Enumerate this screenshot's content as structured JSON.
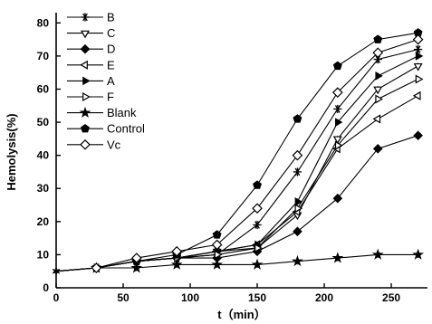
{
  "chart_data": {
    "type": "line",
    "title": "",
    "xlabel": "t（min）",
    "ylabel": "Hemolysis(%)",
    "xlim": [
      0,
      277
    ],
    "ylim": [
      0,
      82
    ],
    "xticks": [
      "0",
      "50",
      "100",
      "150",
      "200",
      "250"
    ],
    "yticks": [
      "0",
      "10",
      "20",
      "30",
      "40",
      "50",
      "60",
      "70",
      "80"
    ],
    "legend": "top-left",
    "grid": false,
    "series": [
      {
        "name": "B",
        "marker": "star6",
        "x": [
          0,
          30,
          60,
          90,
          120,
          150,
          180,
          210,
          240,
          270
        ],
        "y": [
          5,
          6,
          8,
          9,
          10,
          19,
          35,
          54,
          69,
          72
        ]
      },
      {
        "name": "C",
        "marker": "triangle-down-open",
        "x": [
          0,
          30,
          60,
          90,
          120,
          150,
          180,
          210,
          240,
          270
        ],
        "y": [
          5,
          6,
          8,
          9,
          11,
          12,
          22,
          45,
          60,
          67
        ]
      },
      {
        "name": "D",
        "marker": "diamond-filled",
        "x": [
          0,
          30,
          60,
          90,
          120,
          150,
          180,
          210,
          240,
          270
        ],
        "y": [
          5,
          6,
          8,
          9,
          9,
          11,
          17,
          27,
          42,
          46
        ]
      },
      {
        "name": "E",
        "marker": "triangle-left-open",
        "x": [
          0,
          30,
          60,
          90,
          120,
          150,
          180,
          210,
          240,
          270
        ],
        "y": [
          5,
          6,
          8,
          9,
          11,
          13,
          23,
          42,
          51,
          58
        ]
      },
      {
        "name": "A",
        "marker": "triangle-right-filled",
        "x": [
          0,
          30,
          60,
          90,
          120,
          150,
          180,
          210,
          240,
          270
        ],
        "y": [
          5,
          6,
          8,
          9,
          11,
          13,
          26,
          50,
          64,
          70
        ]
      },
      {
        "name": "F",
        "marker": "triangle-right-open",
        "x": [
          0,
          30,
          60,
          90,
          120,
          150,
          180,
          210,
          240,
          270
        ],
        "y": [
          5,
          6,
          8,
          9,
          10,
          12,
          24,
          43,
          57,
          63
        ]
      },
      {
        "name": "Blank",
        "marker": "star5",
        "x": [
          0,
          30,
          60,
          90,
          120,
          150,
          180,
          210,
          240,
          270
        ],
        "y": [
          5,
          6,
          6,
          7,
          7,
          7,
          8,
          9,
          10,
          10
        ]
      },
      {
        "name": "Control",
        "marker": "pentagon-filled",
        "x": [
          0,
          30,
          60,
          90,
          120,
          150,
          180,
          210,
          240,
          270
        ],
        "y": [
          5,
          6,
          8,
          10,
          16,
          31,
          51,
          67,
          75,
          77
        ]
      },
      {
        "name": "Vc",
        "marker": "diamond-open",
        "x": [
          0,
          30,
          60,
          90,
          120,
          150,
          180,
          210,
          240,
          270
        ],
        "y": [
          5,
          6,
          9,
          11,
          13,
          24,
          40,
          59,
          71,
          75
        ]
      }
    ]
  }
}
